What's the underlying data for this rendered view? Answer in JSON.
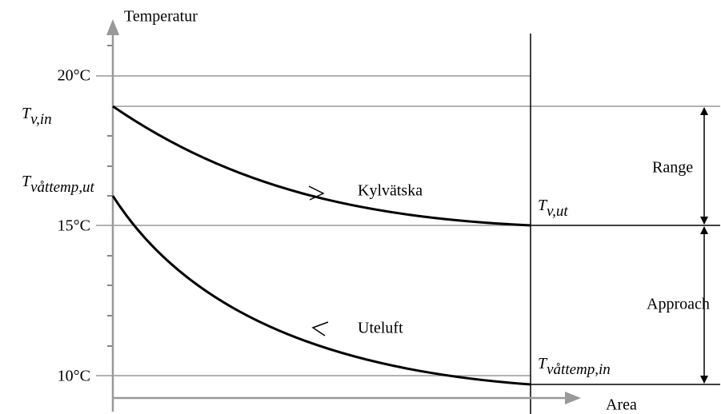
{
  "axes": {
    "y_label": "Temperatur",
    "x_label": "Area"
  },
  "levels": [
    "20°C",
    "15°C",
    "10°C"
  ],
  "points": {
    "t_v_in": {
      "symbol": "T",
      "subscript": "v,in"
    },
    "t_wet_out": {
      "symbol": "T",
      "subscript": "våttemp,ut"
    },
    "t_v_out": {
      "symbol": "T",
      "subscript": "v,ut"
    },
    "t_wet_in": {
      "symbol": "T",
      "subscript": "våttemp,in"
    }
  },
  "curves": [
    "Kylvätska",
    "Uteluft"
  ],
  "spans": [
    "Range",
    "Approach"
  ]
}
